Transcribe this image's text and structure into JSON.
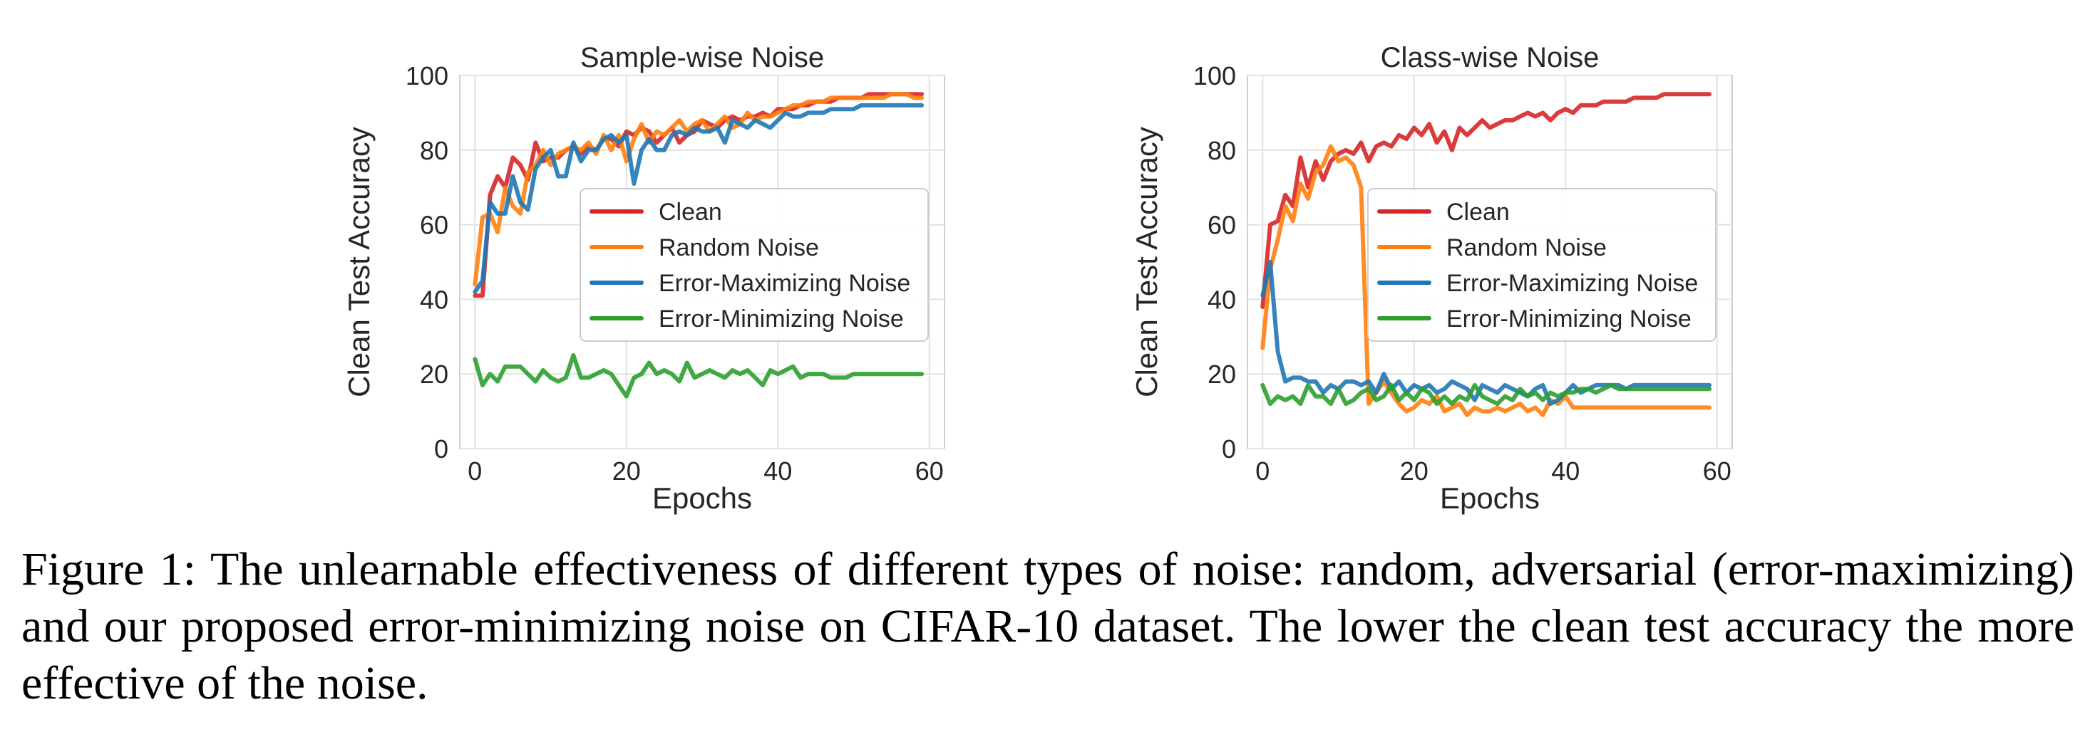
{
  "colors": {
    "Clean": "#d62728",
    "Random Noise": "#ff7f0e",
    "Error-Maximizing Noise": "#1f77b4",
    "Error-Minimizing Noise": "#2ca02c",
    "grid": "#e2e2e2",
    "axes_edge": "#d0d0d0"
  },
  "caption": "Figure 1: The unlearnable effectiveness of different types of noise: random, adversarial (error-maximizing) and our proposed error-minimizing noise on CIFAR-10 dataset. The lower the clean test accuracy the more effective of the noise.",
  "chart_data": [
    {
      "type": "line",
      "title": "Sample-wise Noise",
      "xlabel": "Epochs",
      "ylabel": "Clean Test Accuracy",
      "xlim": [
        -2,
        62
      ],
      "ylim": [
        0,
        100
      ],
      "xticks": [
        0,
        20,
        40,
        60
      ],
      "yticks": [
        0,
        20,
        40,
        60,
        80,
        100
      ],
      "grid": true,
      "legend_position": "center-right",
      "legend": [
        "Clean",
        "Random Noise",
        "Error-Maximizing Noise",
        "Error-Minimizing Noise"
      ],
      "x": [
        0,
        1,
        2,
        3,
        4,
        5,
        6,
        7,
        8,
        9,
        10,
        11,
        12,
        13,
        14,
        15,
        16,
        17,
        18,
        19,
        20,
        21,
        22,
        23,
        24,
        25,
        26,
        27,
        28,
        29,
        30,
        31,
        32,
        33,
        34,
        35,
        36,
        37,
        38,
        39,
        40,
        41,
        42,
        43,
        44,
        45,
        46,
        47,
        48,
        49,
        50,
        51,
        52,
        53,
        54,
        55,
        56,
        57,
        58,
        59
      ],
      "series": [
        {
          "name": "Clean",
          "values": [
            41,
            41,
            68,
            73,
            70,
            78,
            76,
            72,
            82,
            77,
            78,
            78,
            80,
            81,
            79,
            81,
            80,
            83,
            83,
            81,
            85,
            84,
            86,
            85,
            82,
            84,
            86,
            82,
            84,
            85,
            88,
            87,
            86,
            88,
            89,
            88,
            89,
            89,
            90,
            89,
            91,
            91,
            91,
            92,
            92,
            93,
            93,
            93,
            94,
            94,
            94,
            94,
            95,
            95,
            95,
            95,
            95,
            95,
            95,
            95
          ]
        },
        {
          "name": "Random Noise",
          "values": [
            44,
            62,
            63,
            58,
            70,
            65,
            63,
            74,
            76,
            80,
            76,
            79,
            80,
            81,
            80,
            82,
            79,
            84,
            80,
            84,
            77,
            83,
            87,
            82,
            85,
            84,
            86,
            88,
            85,
            87,
            88,
            85,
            87,
            89,
            86,
            87,
            90,
            88,
            89,
            89,
            90,
            91,
            92,
            92,
            93,
            93,
            93,
            94,
            94,
            94,
            94,
            94,
            94,
            94,
            94,
            95,
            95,
            95,
            94,
            94
          ]
        },
        {
          "name": "Error-Maximizing Noise",
          "values": [
            42,
            45,
            66,
            63,
            63,
            73,
            66,
            64,
            75,
            78,
            80,
            73,
            73,
            82,
            77,
            80,
            80,
            83,
            84,
            82,
            84,
            71,
            80,
            83,
            80,
            80,
            84,
            85,
            84,
            86,
            85,
            85,
            86,
            82,
            88,
            87,
            86,
            88,
            87,
            86,
            88,
            90,
            89,
            89,
            90,
            90,
            90,
            91,
            91,
            91,
            91,
            92,
            92,
            92,
            92,
            92,
            92,
            92,
            92,
            92
          ]
        },
        {
          "name": "Error-Minimizing Noise",
          "values": [
            24,
            17,
            20,
            18,
            22,
            22,
            22,
            20,
            18,
            21,
            19,
            18,
            19,
            25,
            19,
            19,
            20,
            21,
            20,
            17,
            14,
            19,
            20,
            23,
            20,
            21,
            20,
            18,
            23,
            19,
            20,
            21,
            20,
            19,
            21,
            20,
            21,
            19,
            17,
            21,
            20,
            21,
            22,
            19,
            20,
            20,
            20,
            19,
            19,
            19,
            20,
            20,
            20,
            20,
            20,
            20,
            20,
            20,
            20,
            20
          ]
        }
      ]
    },
    {
      "type": "line",
      "title": "Class-wise Noise",
      "xlabel": "Epochs",
      "ylabel": "Clean Test Accuracy",
      "xlim": [
        -2,
        62
      ],
      "ylim": [
        0,
        100
      ],
      "xticks": [
        0,
        20,
        40,
        60
      ],
      "yticks": [
        0,
        20,
        40,
        60,
        80,
        100
      ],
      "grid": true,
      "legend_position": "center-right",
      "legend": [
        "Clean",
        "Random Noise",
        "Error-Maximizing Noise",
        "Error-Minimizing Noise"
      ],
      "x": [
        0,
        1,
        2,
        3,
        4,
        5,
        6,
        7,
        8,
        9,
        10,
        11,
        12,
        13,
        14,
        15,
        16,
        17,
        18,
        19,
        20,
        21,
        22,
        23,
        24,
        25,
        26,
        27,
        28,
        29,
        30,
        31,
        32,
        33,
        34,
        35,
        36,
        37,
        38,
        39,
        40,
        41,
        42,
        43,
        44,
        45,
        46,
        47,
        48,
        49,
        50,
        51,
        52,
        53,
        54,
        55,
        56,
        57,
        58,
        59
      ],
      "series": [
        {
          "name": "Clean",
          "values": [
            38,
            60,
            61,
            68,
            65,
            78,
            70,
            77,
            72,
            77,
            79,
            80,
            79,
            82,
            77,
            81,
            82,
            81,
            84,
            83,
            86,
            84,
            87,
            82,
            85,
            80,
            86,
            84,
            86,
            88,
            86,
            87,
            88,
            88,
            89,
            90,
            89,
            90,
            88,
            90,
            91,
            90,
            92,
            92,
            92,
            93,
            93,
            93,
            93,
            94,
            94,
            94,
            94,
            95,
            95,
            95,
            95,
            95,
            95,
            95
          ]
        },
        {
          "name": "Random Noise",
          "values": [
            27,
            48,
            56,
            65,
            61,
            71,
            67,
            74,
            76,
            81,
            77,
            78,
            76,
            70,
            12,
            15,
            18,
            15,
            12,
            10,
            11,
            13,
            12,
            14,
            10,
            11,
            12,
            9,
            11,
            10,
            10,
            11,
            10,
            11,
            12,
            10,
            11,
            9,
            13,
            12,
            14,
            11,
            11,
            11,
            11,
            11,
            11,
            11,
            11,
            11,
            11,
            11,
            11,
            11,
            11,
            11,
            11,
            11,
            11,
            11
          ]
        },
        {
          "name": "Error-Maximizing Noise",
          "values": [
            41,
            50,
            26,
            18,
            19,
            19,
            18,
            18,
            15,
            17,
            16,
            18,
            18,
            17,
            18,
            15,
            20,
            16,
            18,
            15,
            17,
            16,
            17,
            15,
            16,
            18,
            17,
            16,
            13,
            17,
            16,
            15,
            17,
            16,
            15,
            14,
            16,
            17,
            12,
            13,
            15,
            17,
            15,
            16,
            17,
            17,
            17,
            17,
            16,
            17,
            17,
            17,
            17,
            17,
            17,
            17,
            17,
            17,
            17,
            17
          ]
        },
        {
          "name": "Error-Minimizing Noise",
          "values": [
            17,
            12,
            14,
            13,
            14,
            12,
            17,
            14,
            14,
            12,
            16,
            12,
            13,
            15,
            16,
            13,
            14,
            17,
            13,
            15,
            13,
            16,
            15,
            12,
            14,
            12,
            14,
            13,
            17,
            14,
            13,
            12,
            14,
            13,
            16,
            14,
            15,
            13,
            15,
            14,
            15,
            15,
            16,
            16,
            15,
            16,
            17,
            16,
            16,
            16,
            16,
            16,
            16,
            16,
            16,
            16,
            16,
            16,
            16,
            16
          ]
        }
      ]
    }
  ]
}
